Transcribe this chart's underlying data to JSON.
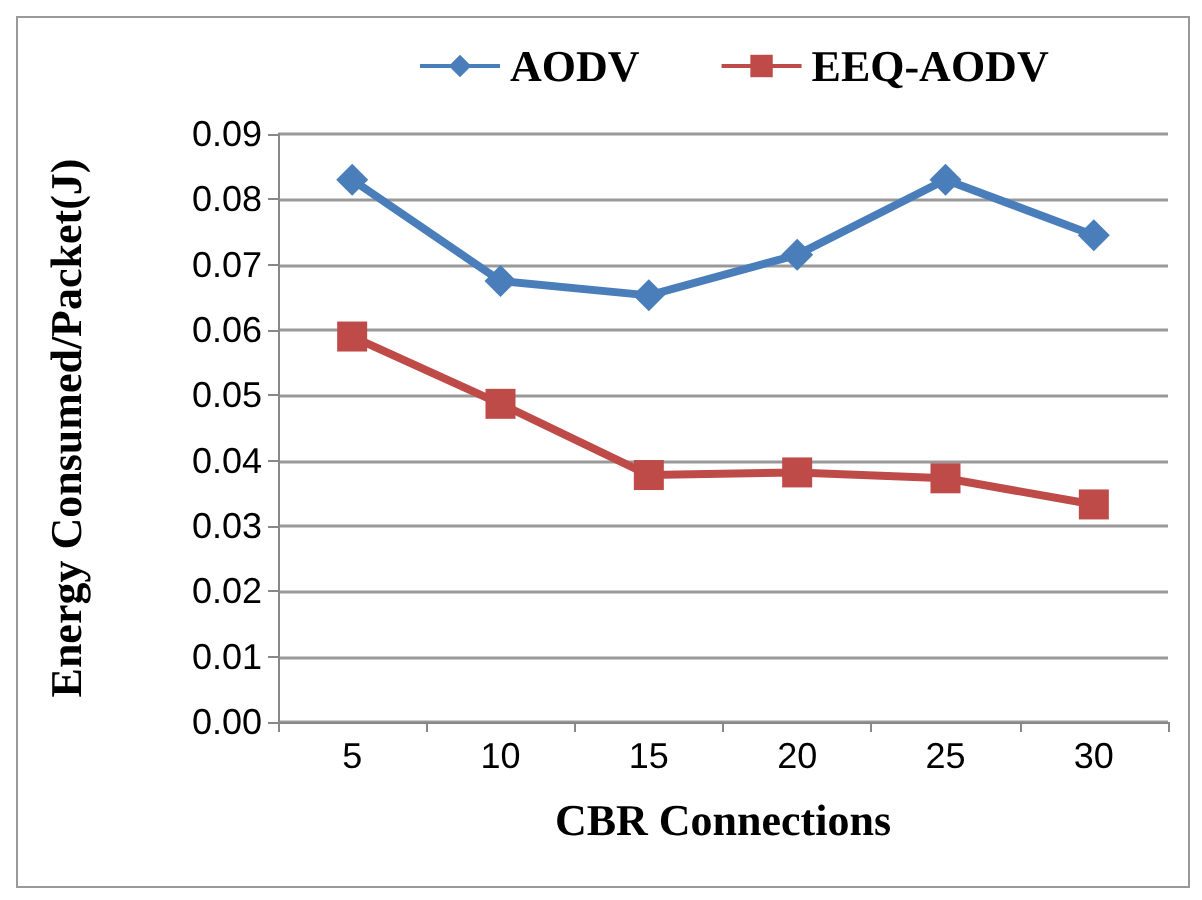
{
  "chart_data": {
    "type": "line",
    "xlabel": "CBR Connections",
    "ylabel": "Energy Consumed/Packet(J)",
    "categories": [
      "5",
      "10",
      "15",
      "20",
      "25",
      "30"
    ],
    "series": [
      {
        "name": "AODV",
        "color": "#4a7ebb",
        "marker": "diamond",
        "values": [
          0.083,
          0.0675,
          0.0653,
          0.0715,
          0.083,
          0.0745
        ]
      },
      {
        "name": "EEQ-AODV",
        "color": "#be4b48",
        "marker": "square",
        "values": [
          0.059,
          0.0487,
          0.0378,
          0.0382,
          0.0373,
          0.0333
        ]
      }
    ],
    "ylim": [
      0,
      0.09
    ],
    "yticks": [
      {
        "value": 0,
        "label": "0.00"
      },
      0.01,
      0.02,
      0.03,
      0.04,
      0.05,
      0.06,
      0.07,
      0.08,
      0.09
    ],
    "grid": "y",
    "legend": "top"
  }
}
